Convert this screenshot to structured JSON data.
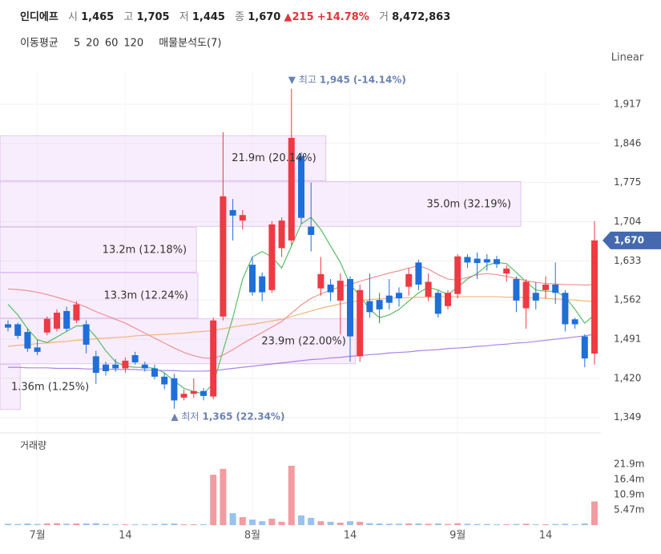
{
  "header": {
    "name": "인디에프",
    "open_label": "시",
    "open": "1,465",
    "high_label": "고",
    "high": "1,705",
    "low_label": "저",
    "low": "1,445",
    "close_label": "종",
    "close": "1,670",
    "change": "▲215",
    "change_pct": "+14.78%",
    "volume_label": "거",
    "volume": "8,472,863"
  },
  "chart_data": {
    "type": "candlestick",
    "scale_label": "Linear",
    "ma_label": "이동평균",
    "categories": [
      null,
      null,
      null,
      "7월",
      null,
      null,
      null,
      null,
      null,
      null,
      null,
      null,
      "14",
      null,
      null,
      null,
      null,
      null,
      null,
      null,
      null,
      null,
      null,
      null,
      null,
      "8월",
      null,
      null,
      null,
      null,
      null,
      null,
      null,
      null,
      null,
      "14",
      null,
      null,
      null,
      null,
      null,
      null,
      null,
      null,
      null,
      null,
      "9월",
      null,
      null,
      null,
      null,
      null,
      null,
      null,
      null,
      "14",
      null,
      null,
      null,
      null,
      null
    ],
    "open": [
      1518,
      1518,
      1504,
      1476,
      1503,
      1510,
      1542,
      1525,
      1518,
      1460,
      1445,
      1445,
      1438,
      1462,
      1445,
      1438,
      1423,
      1420,
      1385,
      1392,
      1397,
      1387,
      1532,
      1725,
      1706,
      1626,
      1605,
      1580,
      1656,
      1670,
      1823,
      1695,
      1583,
      1590,
      1561,
      1600,
      1460,
      1560,
      1562,
      1570,
      1575,
      1586,
      1630,
      1568,
      1575,
      1551,
      1573,
      1640,
      1637,
      1636,
      1636,
      1610,
      1600,
      1547,
      1575,
      1580,
      1590,
      1575,
      1527,
      1496,
      1465
    ],
    "high": [
      1525,
      1521,
      1510,
      1490,
      1532,
      1545,
      1550,
      1560,
      1525,
      1470,
      1450,
      1455,
      1458,
      1468,
      1450,
      1445,
      1430,
      1428,
      1400,
      1420,
      1402,
      1530,
      1866,
      1745,
      1725,
      1640,
      1612,
      1705,
      1712,
      1945,
      1830,
      1775,
      1640,
      1600,
      1610,
      1605,
      1590,
      1610,
      1575,
      1600,
      1585,
      1620,
      1635,
      1610,
      1580,
      1580,
      1645,
      1645,
      1648,
      1645,
      1642,
      1625,
      1605,
      1600,
      1595,
      1605,
      1630,
      1580,
      1530,
      1500,
      1705
    ],
    "low": [
      1505,
      1492,
      1468,
      1462,
      1498,
      1505,
      1505,
      1520,
      1465,
      1410,
      1425,
      1432,
      1430,
      1445,
      1432,
      1418,
      1400,
      1365,
      1380,
      1385,
      1380,
      1382,
      1525,
      1670,
      1690,
      1570,
      1560,
      1575,
      1640,
      1660,
      1700,
      1650,
      1570,
      1560,
      1500,
      1450,
      1450,
      1530,
      1520,
      1545,
      1550,
      1570,
      1580,
      1560,
      1530,
      1545,
      1565,
      1620,
      1600,
      1615,
      1620,
      1595,
      1540,
      1510,
      1545,
      1565,
      1555,
      1505,
      1510,
      1440,
      1445
    ],
    "close": [
      1512,
      1497,
      1474,
      1468,
      1528,
      1539,
      1510,
      1554,
      1481,
      1430,
      1433,
      1438,
      1452,
      1449,
      1438,
      1423,
      1409,
      1380,
      1392,
      1397,
      1388,
      1525,
      1750,
      1715,
      1716,
      1576,
      1576,
      1699,
      1706,
      1856,
      1711,
      1680,
      1609,
      1576,
      1597,
      1496,
      1580,
      1540,
      1545,
      1557,
      1565,
      1609,
      1590,
      1595,
      1537,
      1575,
      1641,
      1630,
      1629,
      1630,
      1627,
      1619,
      1561,
      1595,
      1561,
      1590,
      1575,
      1518,
      1518,
      1456,
      1670
    ],
    "up_color": "#ee3a43",
    "down_color": "#1f6fd8",
    "ylim": [
      1321,
      1978
    ],
    "yticks": [
      {
        "value": 1917,
        "label": "1,917"
      },
      {
        "value": 1846,
        "label": "1,846"
      },
      {
        "value": 1775,
        "label": "1,775"
      },
      {
        "value": 1704,
        "label": "1,704"
      },
      {
        "value": 1633,
        "label": "1,633"
      },
      {
        "value": 1562,
        "label": "1,562"
      },
      {
        "value": 1491,
        "label": "1,491"
      },
      {
        "value": 1420,
        "label": "1,420"
      },
      {
        "value": 1349,
        "label": "1,349"
      }
    ],
    "grid": true,
    "last_price": {
      "value": 1670,
      "label": "1,670"
    },
    "annotations": [
      {
        "text": "▼ 최고",
        "value": {
          "value": 1945,
          "label": "1,945"
        },
        "change": "(-14.14%)",
        "side": "top"
      },
      {
        "text": "▲ 최저",
        "value": {
          "value": 1365,
          "label": "1,365"
        },
        "change": "(22.34%)",
        "side": "bottom"
      }
    ],
    "moving_averages": [
      {
        "name": "5",
        "color": "#3cb44b",
        "values": [
          1554,
          1535,
          1510,
          1490,
          1485,
          1495,
          1505,
          1515,
          1515,
          1495,
          1470,
          1450,
          1442,
          1440,
          1440,
          1438,
          1430,
          1415,
          1402,
          1396,
          1392,
          1410,
          1470,
          1530,
          1600,
          1640,
          1650,
          1640,
          1620,
          1660,
          1700,
          1712,
          1690,
          1660,
          1630,
          1590,
          1570,
          1545,
          1530,
          1535,
          1545,
          1560,
          1575,
          1585,
          1580,
          1572,
          1585,
          1600,
          1610,
          1625,
          1630,
          1628,
          1612,
          1595,
          1580,
          1578,
          1578,
          1568,
          1545,
          1520,
          1535
        ]
      },
      {
        "name": "20",
        "color": "#f08080",
        "values": [
          1582,
          1581,
          1579,
          1576,
          1572,
          1567,
          1562,
          1556,
          1549,
          1541,
          1534,
          1527,
          1520,
          1511,
          1502,
          1493,
          1484,
          1475,
          1467,
          1461,
          1457,
          1456,
          1462,
          1472,
          1483,
          1493,
          1503,
          1513,
          1523,
          1538,
          1553,
          1565,
          1573,
          1580,
          1586,
          1590,
          1596,
          1601,
          1606,
          1611,
          1615,
          1620,
          1624,
          1618,
          1608,
          1600,
          1598,
          1603,
          1608,
          1610,
          1608,
          1605,
          1601,
          1597,
          1594,
          1592,
          1591,
          1590,
          1590,
          1589,
          1590
        ]
      },
      {
        "name": "60",
        "color": "#f0a860",
        "values": [
          1478,
          1480,
          1481,
          1483,
          1484,
          1486,
          1487,
          1489,
          1490,
          1492,
          1493,
          1494,
          1495,
          1497,
          1498,
          1499,
          1500,
          1501,
          1502,
          1504,
          1505,
          1507,
          1510,
          1513,
          1516,
          1518,
          1521,
          1524,
          1527,
          1532,
          1537,
          1542,
          1547,
          1551,
          1555,
          1558,
          1561,
          1563,
          1564,
          1565,
          1566,
          1566,
          1567,
          1567,
          1568,
          1568,
          1568,
          1568,
          1568,
          1568,
          1568,
          1567,
          1567,
          1566,
          1566,
          1565,
          1564,
          1563,
          1562,
          1560,
          1559
        ]
      },
      {
        "name": "120",
        "color": "#9b6fe0",
        "values": [
          1440,
          1440,
          1439,
          1439,
          1439,
          1438,
          1438,
          1438,
          1437,
          1437,
          1437,
          1436,
          1436,
          1436,
          1435,
          1435,
          1434,
          1434,
          1433,
          1433,
          1433,
          1434,
          1436,
          1438,
          1440,
          1442,
          1444,
          1446,
          1448,
          1450,
          1452,
          1454,
          1455,
          1457,
          1458,
          1460,
          1461,
          1463,
          1464,
          1466,
          1467,
          1468,
          1470,
          1471,
          1472,
          1474,
          1475,
          1476,
          1478,
          1479,
          1481,
          1482,
          1484,
          1485,
          1487,
          1489,
          1491,
          1493,
          1495,
          1497,
          1500
        ]
      }
    ],
    "volume_profile": {
      "title": "매물분석도(7)",
      "bins": [
        1362,
        1445,
        1528,
        1611,
        1694,
        1777,
        1860
      ],
      "values": [
        1.36,
        23.9,
        13.3,
        13.2,
        35.0,
        21.9
      ],
      "value_labels": [
        "1.36m (1.25%)",
        "23.9m (22.00%)",
        "13.3m (12.24%)",
        "13.2m (12.18%)",
        "35.0m (32.19%)",
        "21.9m (20.14%)"
      ]
    },
    "volume": {
      "title": "거래량",
      "values": [
        0.5,
        0.4,
        0.6,
        0.4,
        0.6,
        0.7,
        0.5,
        0.6,
        0.6,
        0.7,
        0.4,
        0.3,
        0.3,
        0.3,
        0.3,
        0.4,
        0.5,
        0.6,
        0.3,
        0.3,
        0.3,
        18.1,
        20.2,
        4.3,
        2.9,
        2.0,
        1.4,
        2.3,
        1.2,
        21.3,
        3.5,
        2.6,
        1.4,
        1.2,
        0.9,
        1.4,
        1.2,
        0.7,
        0.6,
        0.5,
        0.5,
        0.6,
        0.6,
        0.5,
        0.6,
        0.4,
        0.7,
        0.5,
        0.4,
        0.4,
        0.3,
        0.3,
        0.4,
        0.5,
        0.3,
        0.3,
        0.4,
        0.5,
        0.3,
        0.6,
        8.5
      ],
      "up_color": "#f29ca1",
      "down_color": "#99c2ef",
      "ylim": [
        0,
        33.1
      ],
      "yticks": [
        {
          "value": 21.9,
          "label": "21.9m"
        },
        {
          "value": 16.4,
          "label": "16.4m"
        },
        {
          "value": 10.9,
          "label": "10.9m"
        },
        {
          "value": 5.47,
          "label": "5.47m"
        }
      ]
    }
  }
}
